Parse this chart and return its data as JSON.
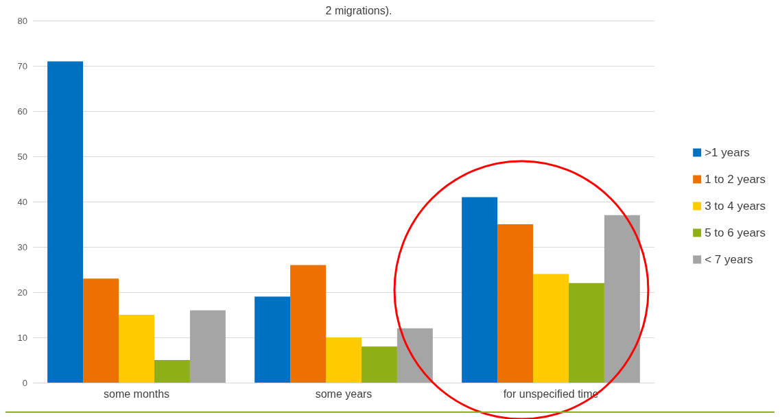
{
  "chart_data": {
    "type": "bar",
    "title": "2 migrations).",
    "categories": [
      "some months",
      "some years",
      "for unspecified time"
    ],
    "series": [
      {
        "name": ">1 years",
        "color": "#0070c0",
        "values": [
          71,
          19,
          41
        ]
      },
      {
        "name": "1 to 2 years",
        "color": "#ed7100",
        "values": [
          23,
          26,
          35
        ]
      },
      {
        "name": "3 to 4 years",
        "color": "#ffcc00",
        "values": [
          15,
          10,
          24
        ]
      },
      {
        "name": "5 to 6 years",
        "color": "#8faf17",
        "values": [
          5,
          8,
          22
        ]
      },
      {
        "name": "< 7 years",
        "color": "#a5a5a5",
        "values": [
          16,
          12,
          37
        ]
      }
    ],
    "ylim": [
      0,
      80
    ],
    "yticks": [
      0,
      10,
      20,
      30,
      40,
      50,
      60,
      70,
      80
    ],
    "grid": "y",
    "legend": "right"
  }
}
